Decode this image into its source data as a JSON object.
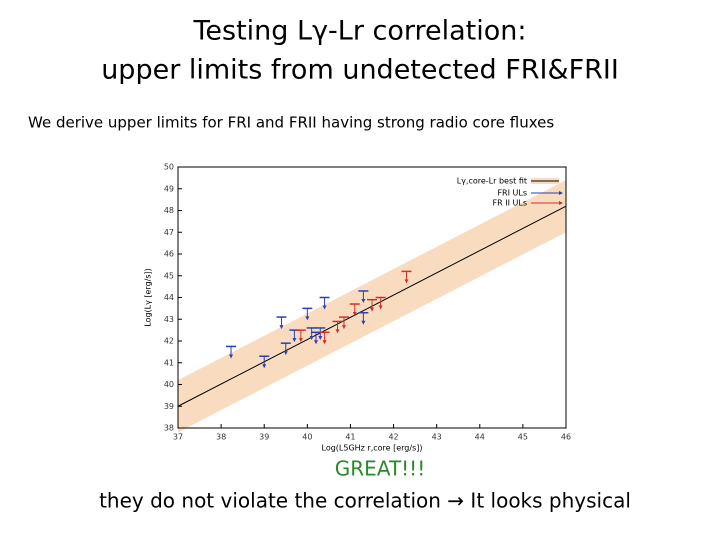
{
  "slide": {
    "title_lines": [
      "Testing Lγ-Lr correlation:",
      "upper limits from undetected FRI&FRII"
    ],
    "subtitle": "We derive upper limits for FRI and FRII having strong radio core fluxes",
    "conclusion_lines": [
      "GREAT!!!",
      "they do not violate the correlation → It looks physical"
    ]
  },
  "chart_data": {
    "type": "scatter",
    "x_label": "Log(L5GHz r,core [erg/s])",
    "y_label": "Log(Lγ [erg/s])",
    "xlim": [
      37,
      46
    ],
    "xticks": [
      37,
      38,
      39,
      40,
      41,
      42,
      43,
      44,
      45,
      46
    ],
    "ylim": [
      38,
      50
    ],
    "yticks": [
      38,
      39,
      40,
      41,
      42,
      43,
      44,
      45,
      46,
      47,
      48,
      49,
      50
    ],
    "legend": "upper-right",
    "fit": {
      "name": "Lγ,core-Lr best fit",
      "color": "#000000",
      "band_color": "#f9dcc0",
      "x": [
        37,
        46
      ],
      "values": [
        39.0,
        48.2
      ],
      "lower": [
        37.8,
        47.0
      ],
      "upper": [
        40.2,
        49.4
      ]
    },
    "series": [
      {
        "name": "FRI ULs",
        "color": "#2a3fb8",
        "x": [
          38.23,
          39.0,
          39.4,
          39.7,
          39.5,
          40.0,
          40.1,
          40.4,
          40.2,
          40.3,
          41.3,
          41.3
        ],
        "values": [
          41.75,
          41.3,
          43.1,
          42.5,
          41.9,
          43.5,
          42.6,
          44.0,
          42.4,
          42.6,
          43.3,
          44.3
        ]
      },
      {
        "name": "FR II ULs",
        "color": "#d0302a",
        "x": [
          42.3,
          41.5,
          40.85,
          40.4,
          41.1,
          41.7,
          39.85,
          40.7
        ],
        "values": [
          45.2,
          43.9,
          43.1,
          42.4,
          43.7,
          44.0,
          42.5,
          42.9
        ]
      }
    ]
  }
}
